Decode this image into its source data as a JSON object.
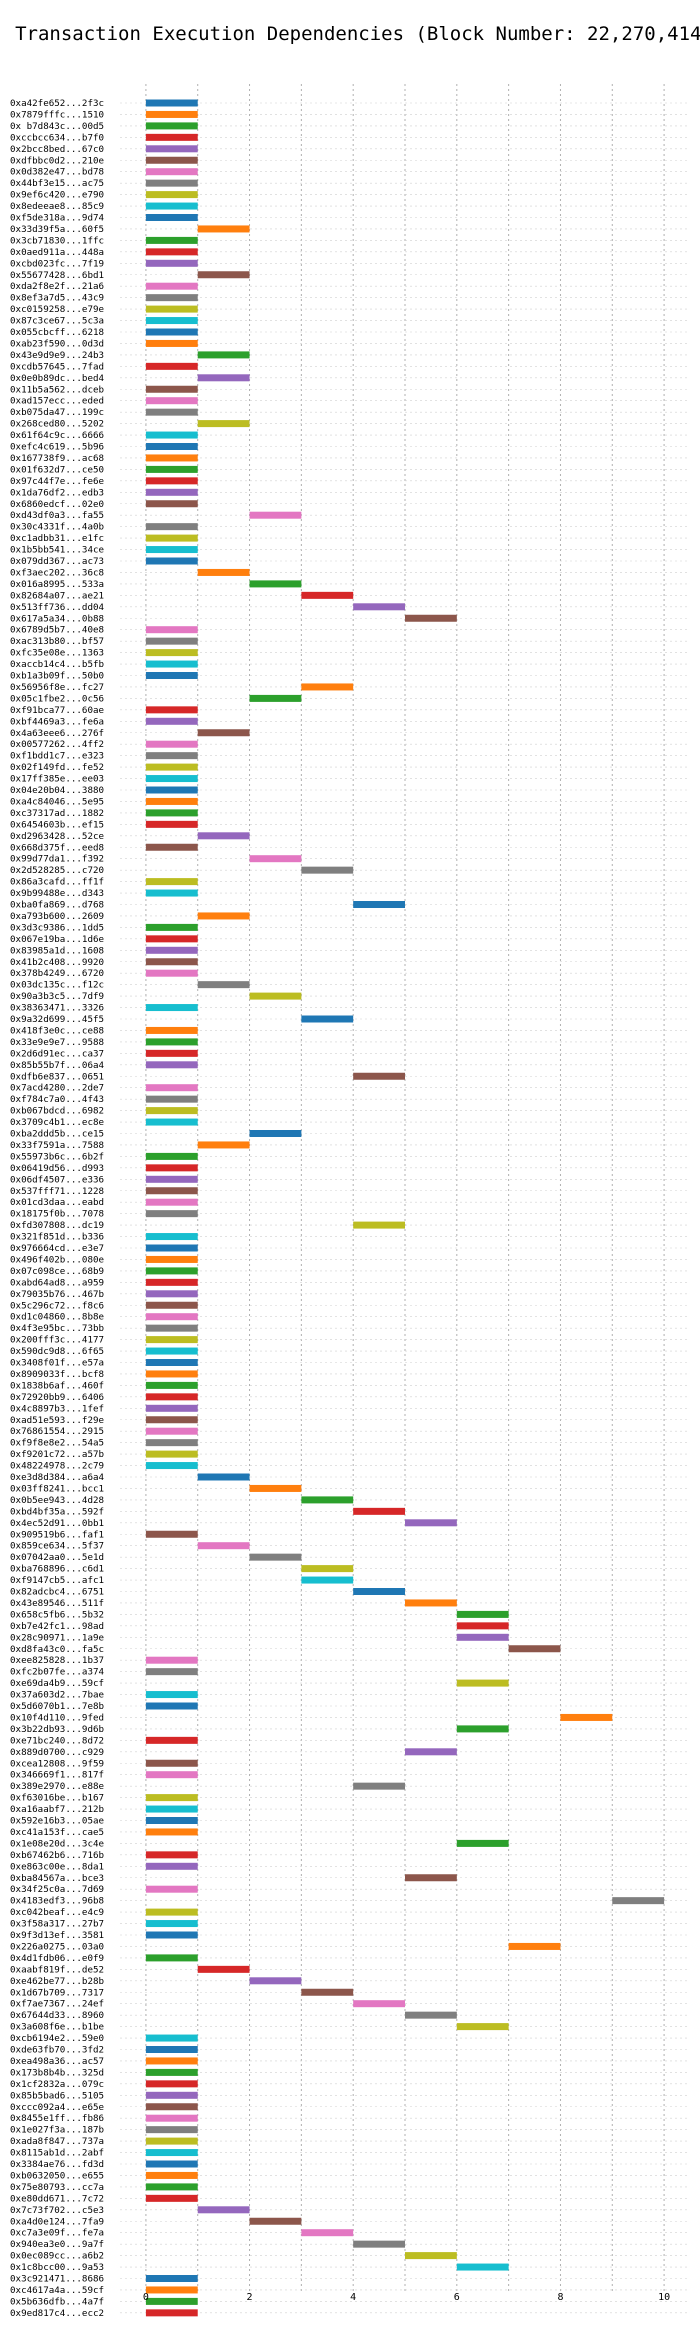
{
  "chart_data": {
    "type": "bar",
    "orientation": "horizontal",
    "title": "Transaction Execution Dependencies (Block Number: 22,270,414)",
    "xlabel": "",
    "ylabel": "",
    "xlim": [
      -0.5,
      10.5
    ],
    "xticks": [
      0,
      2,
      4,
      6,
      8,
      10
    ],
    "grid": true,
    "palette": [
      "#1f77b4",
      "#ff7f0e",
      "#2ca02c",
      "#d62728",
      "#9467bd",
      "#8c564b",
      "#e377c2",
      "#7f7f7f",
      "#bcbd22",
      "#17becf"
    ],
    "categories": [
      "0xa42fe652...2f3c",
      "0x7879fffc...1510",
      "0x b7d843c...00d5",
      "0xccbcc634...b7f0",
      "0x2bcc8bed...67c0",
      "0xdfbbc0d2...210e",
      "0x0d382e47...bd78",
      "0x44bf3e15...ac75",
      "0x9ef6c420...e790",
      "0x8edeeae8...85c9",
      "0xf5de318a...9d74",
      "0x33d39f5a...60f5",
      "0x3cb71830...1ffc",
      "0x0aed911a...448a",
      "0xcbd023fc...7f19",
      "0x55677428...6bd1",
      "0xda2f8e2f...21a6",
      "0x8ef3a7d5...43c9",
      "0xc0159258...e79e",
      "0x87c3ce67...5c3a",
      "0x055cbcff...6218",
      "0xab23f590...0d3d",
      "0x43e9d9e9...24b3",
      "0xcdb57645...7fad",
      "0x0e0b89dc...bed4",
      "0x11b5a562...dceb",
      "0xad157ecc...eded",
      "0xb075da47...199c",
      "0x268ced80...5202",
      "0x61f64c9c...6666",
      "0xefc4c619...5b96",
      "0x167738f9...ac68",
      "0x01f632d7...ce50",
      "0x97c44f7e...fe6e",
      "0x1da76df2...edb3",
      "0x6860edcf...02e0",
      "0xd43df0a3...fa55",
      "0x30c4331f...4a0b",
      "0xc1adbb31...e1fc",
      "0x1b5bb541...34ce",
      "0x079dd367...ac73",
      "0xf3aec202...36c8",
      "0x016a8995...533a",
      "0x82684a07...ae21",
      "0x513ff736...dd04",
      "0x617a5a34...0b88",
      "0x6789d5b7...40e8",
      "0xac313b80...bf57",
      "0xfc35e08e...1363",
      "0xaccb14c4...b5fb",
      "0xb1a3b09f...50b0",
      "0x56956f8e...fc27",
      "0x05c1fbe2...0c56",
      "0xf91bca77...60ae",
      "0xbf4469a3...fe6a",
      "0x4a63eee6...276f",
      "0x00577262...4ff2",
      "0xf1bdd1c7...e323",
      "0x02f149fd...fe52",
      "0x17ff385e...ee03",
      "0x04e20b04...3880",
      "0xa4c84046...5e95",
      "0xc37317ad...1882",
      "0x6454603b...ef15",
      "0xd2963428...52ce",
      "0x668d375f...eed8",
      "0x99d77da1...f392",
      "0x2d528285...c720",
      "0x86a3cafd...ff1f",
      "0x9b99488e...d343",
      "0xba0fa869...d768",
      "0xa793b600...2609",
      "0x3d3c9386...1dd5",
      "0x067e19ba...1d6e",
      "0x83985a1d...1608",
      "0x41b2c408...9920",
      "0x378b4249...6720",
      "0x03dc135c...f12c",
      "0x90a3b3c5...7df9",
      "0x38363471...3326",
      "0x9a32d699...45f5",
      "0x418f3e0c...ce88",
      "0x33e9e9e7...9588",
      "0x2d6d91ec...ca37",
      "0x85b55b7f...06a4",
      "0xdfb6e837...0651",
      "0x7acd4280...2de7",
      "0xf784c7a0...4f43",
      "0xb067bdcd...6982",
      "0x3709c4b1...ec8e",
      "0xba2ddd5b...ce15",
      "0x33f7591a...7588",
      "0x55973b6c...6b2f",
      "0x06419d56...d993",
      "0x06df4507...e336",
      "0x537fff71...1228",
      "0x01cd3daa...eabd",
      "0x18175f0b...7078",
      "0xfd307808...dc19",
      "0x321f851d...b336",
      "0x976664cd...e3e7",
      "0x496f402b...080e",
      "0x07c098ce...68b9",
      "0xabd64ad8...a959",
      "0x79035b76...467b",
      "0x5c296c72...f8c6",
      "0xd1c04860...8b8e",
      "0x4f3e95bc...73bb",
      "0x200fff3c...4177",
      "0x590dc9d8...6f65",
      "0x3408f01f...e57a",
      "0x8909033f...bcf8",
      "0x1838b6af...460f",
      "0x72920bb9...6406",
      "0x4c8897b3...1fef",
      "0xad51e593...f29e",
      "0x76861554...2915",
      "0xf9f8e8e2...54a5",
      "0xf9201c72...a57b",
      "0x48224978...2c79",
      "0xe3d8d384...a6a4",
      "0x03ff8241...bcc1",
      "0x0b5ee943...4d28",
      "0xbd4bf35a...592f",
      "0x4ec52d91...0bb1",
      "0x909519b6...faf1",
      "0x859ce634...5f37",
      "0x07042aa0...5e1d",
      "0xba768896...c6d1",
      "0xf9147cb5...afc1",
      "0x82adcbc4...6751",
      "0x43e89546...511f",
      "0x658c5fb6...5b32",
      "0xb7e42fc1...98ad",
      "0x28c90971...1a9e",
      "0xd8fa43c0...fa5c",
      "0xee825828...1b37",
      "0xfc2b07fe...a374",
      "0xe69da4b9...59cf",
      "0x37a603d2...7bae",
      "0x5d6070b1...7e8b",
      "0x10f4d110...9fed",
      "0x3b22db93...9d6b",
      "0xe71bc240...8d72",
      "0x889d0700...c929",
      "0xcea12808...9f59",
      "0x346669f1...817f",
      "0x389e2970...e88e",
      "0xf63016be...b167",
      "0xa16aabf7...212b",
      "0x592e16b3...05ae",
      "0xc41a153f...cae5",
      "0x1e08e20d...3c4e",
      "0xb67462b6...716b",
      "0xe863c00e...8da1",
      "0xba84567a...bce3",
      "0x34f25c0a...7d69",
      "0x4183edf3...96b8",
      "0xc042beaf...e4c9",
      "0x3f58a317...27b7",
      "0x9f3d13ef...3581",
      "0x226a0275...03a0",
      "0x4d1fdb06...e0f9",
      "0xaabf819f...de52",
      "0xe462be77...b28b",
      "0x1d67b709...7317",
      "0xf7ae7367...24ef",
      "0x67644d33...8960",
      "0x3a608f6e...b1be",
      "0xcb6194e2...59e0",
      "0xde63fb70...3fd2",
      "0xea498a36...ac57",
      "0x173b8b4b...325d",
      "0x1cf2832a...079c",
      "0x85b5bad6...5105",
      "0xccc092a4...e65e",
      "0x8455e1ff...fb86",
      "0x1e027f3a...187b",
      "0xada8f847...737a",
      "0x8115ab1d...2abf",
      "0x3384ae76...fd3d",
      "0xb0632050...e655",
      "0x75e80793...cc7a",
      "0xe80dd671...7c72",
      "0x7c73f702...c5e3",
      "0xa4d0e124...7fa9",
      "0xc7a3e09f...fe7a",
      "0x940ea3e0...9a7f",
      "0x0ec089cc...a6b2",
      "0x1c8bcc00...9a53",
      "0x3c921471...8686",
      "0xc4617a4a...59cf",
      "0x5b636dfb...4a7f",
      "0x9ed817c4...ecc2"
    ],
    "starts": [
      0,
      0,
      0,
      0,
      0,
      0,
      0,
      0,
      0,
      0,
      0,
      1,
      0,
      0,
      0,
      1,
      0,
      0,
      0,
      0,
      0,
      0,
      1,
      0,
      1,
      0,
      0,
      0,
      1,
      0,
      0,
      0,
      0,
      0,
      0,
      0,
      2,
      0,
      0,
      0,
      0,
      1,
      2,
      3,
      4,
      5,
      0,
      0,
      0,
      0,
      0,
      3,
      2,
      0,
      0,
      1,
      0,
      0,
      0,
      0,
      0,
      0,
      0,
      0,
      1,
      0,
      2,
      3,
      0,
      0,
      4,
      1,
      0,
      0,
      0,
      0,
      0,
      1,
      2,
      0,
      3,
      0,
      0,
      0,
      0,
      4,
      0,
      0,
      0,
      0,
      2,
      1,
      0,
      0,
      0,
      0,
      0,
      0,
      4,
      0,
      0,
      0,
      0,
      0,
      0,
      0,
      0,
      0,
      0,
      0,
      0,
      0,
      0,
      0,
      0,
      0,
      0,
      0,
      0,
      0,
      1,
      2,
      3,
      4,
      5,
      0,
      1,
      2,
      3,
      3,
      4,
      5,
      6,
      6,
      6,
      7,
      0,
      0,
      6,
      0,
      0,
      8,
      6,
      0,
      5,
      0,
      0,
      4,
      0,
      0,
      0,
      0,
      6,
      0,
      0,
      5,
      0,
      9,
      0,
      0,
      0,
      7,
      0,
      1,
      2,
      3,
      4,
      5,
      6,
      0,
      0,
      0,
      0,
      0,
      0,
      0,
      0,
      0,
      0,
      0,
      0,
      0,
      0,
      0,
      1,
      2,
      3,
      4,
      5,
      6,
      0,
      0,
      0,
      0
    ],
    "durations": [
      1,
      1,
      1,
      1,
      1,
      1,
      1,
      1,
      1,
      1,
      1,
      1,
      1,
      1,
      1,
      1,
      1,
      1,
      1,
      1,
      1,
      1,
      1,
      1,
      1,
      1,
      1,
      1,
      1,
      1,
      1,
      1,
      1,
      1,
      1,
      1,
      1,
      1,
      1,
      1,
      1,
      1,
      1,
      1,
      1,
      1,
      1,
      1,
      1,
      1,
      1,
      1,
      1,
      1,
      1,
      1,
      1,
      1,
      1,
      1,
      1,
      1,
      1,
      1,
      1,
      1,
      1,
      1,
      1,
      1,
      1,
      1,
      1,
      1,
      1,
      1,
      1,
      1,
      1,
      1,
      1,
      1,
      1,
      1,
      1,
      1,
      1,
      1,
      1,
      1,
      1,
      1,
      1,
      1,
      1,
      1,
      1,
      1,
      1,
      1,
      1,
      1,
      1,
      1,
      1,
      1,
      1,
      1,
      1,
      1,
      1,
      1,
      1,
      1,
      1,
      1,
      1,
      1,
      1,
      1,
      1,
      1,
      1,
      1,
      1,
      1,
      1,
      1,
      1,
      1,
      1,
      1,
      1,
      1,
      1,
      1,
      1,
      1,
      1,
      1,
      1,
      1,
      1,
      1,
      1,
      1,
      1,
      1,
      1,
      1,
      1,
      1,
      1,
      1,
      1,
      1,
      1,
      1,
      1,
      1,
      1,
      1,
      1,
      1,
      1,
      1,
      1,
      1,
      1,
      1,
      1,
      1,
      1,
      1,
      1,
      1,
      1,
      1,
      1,
      1,
      1,
      1,
      1,
      1,
      1,
      1,
      1,
      1,
      1,
      1,
      1,
      1,
      1,
      1
    ]
  }
}
